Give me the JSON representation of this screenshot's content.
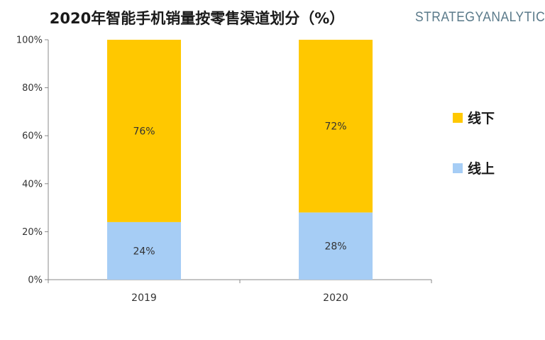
{
  "title": "2020年智能手机销量按零售渠道划分（%）",
  "brand": "STRATEGYANALYTICS",
  "chart_data": {
    "type": "bar",
    "stacked": true,
    "categories": [
      "2019",
      "2020"
    ],
    "series": [
      {
        "name": "线上",
        "values": [
          24,
          28
        ],
        "color": "#a6cdf5",
        "labels": [
          "24%",
          "28%"
        ]
      },
      {
        "name": "线下",
        "values": [
          76,
          72
        ],
        "color": "#ffc800",
        "labels": [
          "76%",
          "72%"
        ]
      }
    ],
    "ylim": [
      0,
      100
    ],
    "yticks": [
      0,
      20,
      40,
      60,
      80,
      100
    ],
    "ytick_labels": [
      "0%",
      "20%",
      "40%",
      "60%",
      "80%",
      "100%"
    ],
    "legend": {
      "placement": "right",
      "order": [
        "线下",
        "线上"
      ]
    },
    "grid": false
  }
}
